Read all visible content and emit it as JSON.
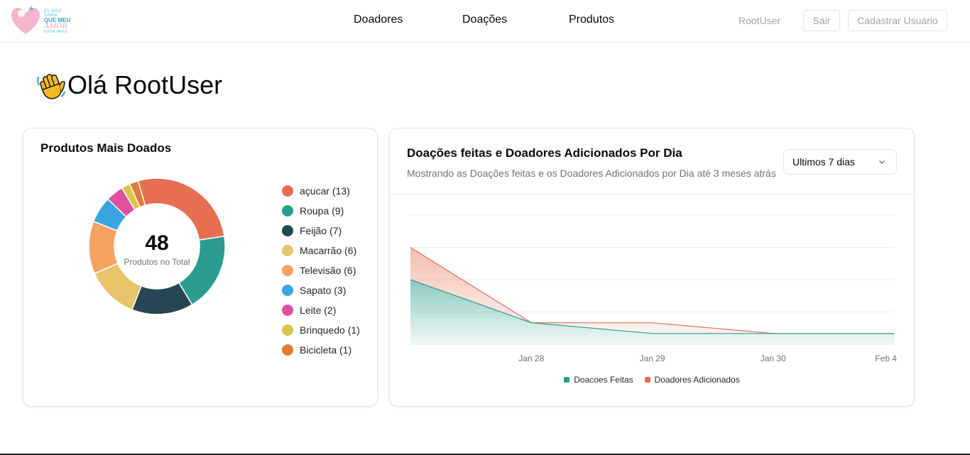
{
  "header": {
    "logo_lines": [
      "EU NÃO SABIA",
      "QUE MEU",
      "AMOR",
      "PODIA TANTO"
    ],
    "nav": [
      "Doadores",
      "Doações",
      "Produtos"
    ],
    "user": "RootUser",
    "logout": "Sair",
    "register": "Cadastrar Usuário"
  },
  "greeting": "Olá RootUser",
  "products_card": {
    "title": "Produtos Mais Doados",
    "total": "48",
    "total_label": "Produtos no Total",
    "items": [
      {
        "label": "açucar (13)",
        "value": 13,
        "color": "#e76e50"
      },
      {
        "label": "Roupa (9)",
        "value": 9,
        "color": "#2a9d8f"
      },
      {
        "label": "Feijão (7)",
        "value": 7,
        "color": "#264653"
      },
      {
        "label": "Macarrão (6)",
        "value": 6,
        "color": "#e9c46a"
      },
      {
        "label": "Televisão (6)",
        "value": 6,
        "color": "#f4a261"
      },
      {
        "label": "Sapato (3)",
        "value": 3,
        "color": "#3aa5e0"
      },
      {
        "label": "Leite (2)",
        "value": 2,
        "color": "#e0509c"
      },
      {
        "label": "Brinquedo (1)",
        "value": 1,
        "color": "#d9c64a"
      },
      {
        "label": "Bicicleta (1)",
        "value": 1,
        "color": "#e07a35"
      }
    ]
  },
  "daily_card": {
    "title": "Doações feitas e Doadores Adicionados Por Dia",
    "subtitle": "Mostrando as Doações feitas e os Doadores Adicionados por Dia até 3 meses atrás",
    "range": "Ultimos 7 dias"
  },
  "chart_data": {
    "type": "area",
    "x": [
      "",
      "Jan 28",
      "Jan 29",
      "Jan 30",
      "Feb 4"
    ],
    "series": [
      {
        "name": "Doacoes Feitas",
        "values": [
          6,
          2,
          1,
          1,
          1
        ],
        "color": "#2a9d8f"
      },
      {
        "name": "Doadores Adicionados",
        "values": [
          3,
          0,
          1,
          0,
          0
        ],
        "color": "#e76e50"
      }
    ],
    "stacked": true,
    "ylim": [
      0,
      12
    ],
    "grid": true,
    "legend": "bottom"
  }
}
